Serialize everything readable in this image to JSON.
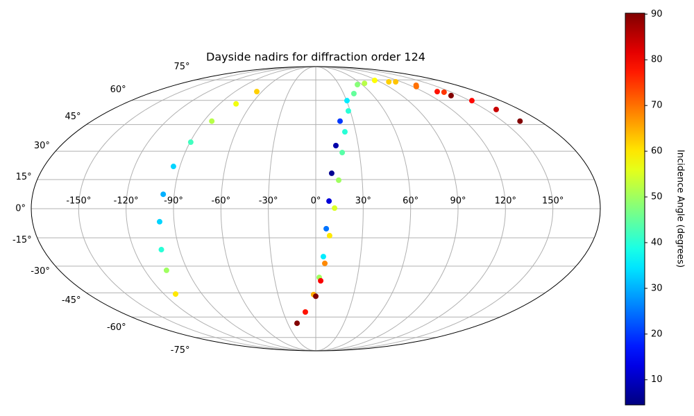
{
  "chart_data": {
    "type": "scatter",
    "projection": "mollweide",
    "title": "Dayside nadirs for diffraction order 124",
    "grid": true,
    "colormap": "jet",
    "clim": [
      4.5,
      90.2
    ],
    "colorbar_label": "Incidence Angle (degrees)",
    "colorbar_ticks": [
      10,
      20,
      30,
      40,
      50,
      60,
      70,
      80,
      90
    ],
    "xlim": [
      -180,
      180
    ],
    "ylim": [
      -90,
      90
    ],
    "xticks": [
      {
        "value": -150,
        "label": "-150°"
      },
      {
        "value": -120,
        "label": "-120°"
      },
      {
        "value": -90,
        "label": "-90°"
      },
      {
        "value": -60,
        "label": "-60°"
      },
      {
        "value": -30,
        "label": "-30°"
      },
      {
        "value": 0,
        "label": "0°"
      },
      {
        "value": 30,
        "label": "30°"
      },
      {
        "value": 60,
        "label": "60°"
      },
      {
        "value": 90,
        "label": "90°"
      },
      {
        "value": 120,
        "label": "120°"
      },
      {
        "value": 150,
        "label": "150°"
      }
    ],
    "yticks": [
      {
        "value": -75,
        "label": "-75°"
      },
      {
        "value": -60,
        "label": "-60°"
      },
      {
        "value": -45,
        "label": "-45°"
      },
      {
        "value": -30,
        "label": "-30°"
      },
      {
        "value": -15,
        "label": "-15°"
      },
      {
        "value": 0,
        "label": "0°"
      },
      {
        "value": 15,
        "label": "15°"
      },
      {
        "value": 30,
        "label": "30°"
      },
      {
        "value": 45,
        "label": "45°"
      },
      {
        "value": 60,
        "label": "60°"
      },
      {
        "value": 75,
        "label": "75°"
      }
    ],
    "series": [
      {
        "x": [
          -65.8,
          -74.7,
          -83.5,
          -89.5,
          -94.3,
          -97,
          -99.2,
          -102,
          -104.8,
          -110.9
        ],
        "y": [
          66,
          57.7,
          47,
          35,
          21.9,
          7.4,
          -6.7,
          -21.2,
          -32.3,
          -45.7
        ],
        "values": [
          62,
          57,
          52,
          42,
          33,
          30,
          33,
          40,
          50,
          60
        ]
      },
      {
        "x": [
          -20,
          -9.6,
          -1.7,
          2.5,
          5.1,
          6.7,
          8.4,
          10.4,
          14.2,
          19.5,
          30.4,
          54,
          86.6,
          112,
          128,
          141.7,
          152,
          159.4,
          164
        ],
        "y": [
          -64.2,
          -56.7,
          -46,
          -36.2,
          -24.9,
          -10.3,
          3.9,
          18.3,
          33.1,
          47,
          59.8,
          71.2,
          74.6,
          73.4,
          70.7,
          65.6,
          59.8,
          54.1,
          47
        ],
        "values": [
          90,
          78,
          65,
          50,
          35,
          25,
          12,
          6,
          8,
          20,
          35,
          48,
          58,
          63,
          70,
          75,
          79,
          84,
          90
        ]
      },
      {
        "x": [
          0,
          3.6,
          6.2,
          8.9,
          11.9,
          14.8,
          18.2,
          21.9,
          28.4,
          41.1,
          65.4,
          102.4,
          124.3,
          135.5,
          141.3
        ],
        "y": [
          -47,
          -38.1,
          -28.5,
          -13.9,
          0.3,
          14.7,
          29.3,
          40.8,
          53.2,
          64.6,
          72.2,
          73.4,
          69.7,
          66,
          63.2
        ],
        "values": [
          90,
          80,
          68,
          60,
          55,
          50,
          44,
          40,
          40,
          45,
          52,
          62,
          70,
          78,
          90
        ]
      }
    ]
  }
}
